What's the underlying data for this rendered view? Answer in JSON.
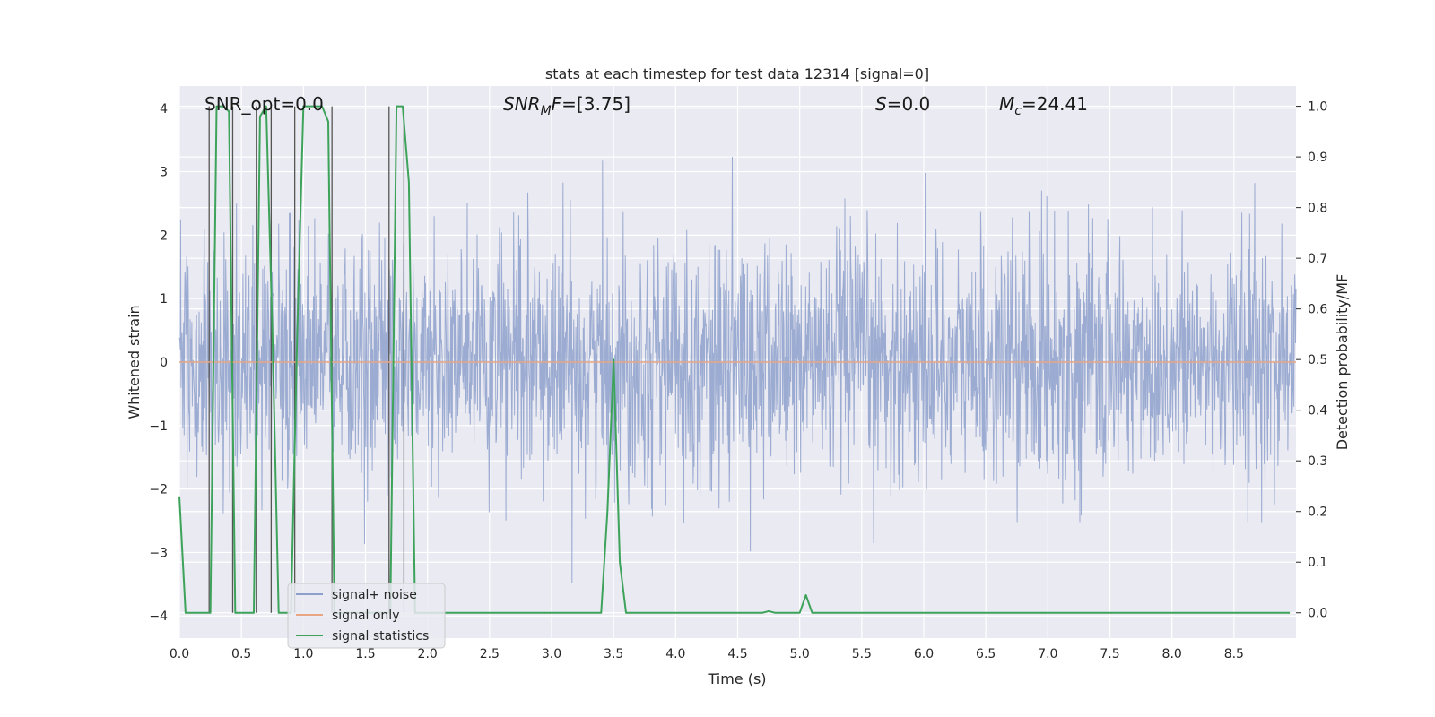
{
  "chart_data": {
    "type": "line",
    "title": "stats at each timestep for test data 12314 [signal=0]",
    "xlabel": "Time (s)",
    "ylabel_left": "Whitened strain",
    "ylabel_right": "Detection probability/MF",
    "xlim": [
      0.0,
      9.0
    ],
    "ylim_left": [
      -4.35,
      4.35
    ],
    "ylim_right": [
      -0.05,
      1.04
    ],
    "x_ticks": [
      "0.0",
      "0.5",
      "1.0",
      "1.5",
      "2.0",
      "2.5",
      "3.0",
      "3.5",
      "4.0",
      "4.5",
      "5.0",
      "5.5",
      "6.0",
      "6.5",
      "7.0",
      "7.5",
      "8.0",
      "8.5"
    ],
    "y_left_ticks": [
      "4",
      "3",
      "2",
      "1",
      "0",
      "−1",
      "−2",
      "−3",
      "−4"
    ],
    "y_right_ticks": [
      "1.0",
      "0.9",
      "0.8",
      "0.7",
      "0.6",
      "0.5",
      "0.4",
      "0.3",
      "0.2",
      "0.1",
      "0.0"
    ],
    "grid": true,
    "legend_placement": "lower-left",
    "annotations": {
      "snr_opt": "SNR_opt=0.0",
      "snr_mf_name": "SNR",
      "snr_mf_sub": "M",
      "snr_mf_rest": "F=[3.75]",
      "s_name": "S",
      "s_rest": "=0.0",
      "mc_name": "M",
      "mc_sub": "c",
      "mc_rest": "=24.41"
    },
    "series": [
      {
        "name": "signal+ noise",
        "color": "#8da0cb",
        "kind": "whitened strain noise around 0, amplitude about ±2, peaks near ±4"
      },
      {
        "name": "signal only",
        "color": "#e8a582",
        "values_constant": 0.0
      },
      {
        "name": "signal statistics",
        "color": "#3da35a",
        "axis": "right",
        "x": [
          0.0,
          0.05,
          0.1,
          0.15,
          0.2,
          0.25,
          0.3,
          0.35,
          0.4,
          0.45,
          0.5,
          0.55,
          0.6,
          0.65,
          0.7,
          0.75,
          0.8,
          0.85,
          0.9,
          0.95,
          1.0,
          1.05,
          1.1,
          1.15,
          1.2,
          1.25,
          1.3,
          1.35,
          1.4,
          1.45,
          1.5,
          1.55,
          1.6,
          1.65,
          1.7,
          1.75,
          1.8,
          1.85,
          1.9,
          1.95,
          2.0,
          2.4,
          3.2,
          3.4,
          3.45,
          3.5,
          3.55,
          3.6,
          3.65,
          4.0,
          4.7,
          4.75,
          4.8,
          4.85,
          5.0,
          5.05,
          5.1,
          5.15,
          8.95
        ],
        "values": [
          0.23,
          0.0,
          0.0,
          0.0,
          0.0,
          0.0,
          1.0,
          1.0,
          0.99,
          0.0,
          0.0,
          0.0,
          0.0,
          0.98,
          1.0,
          0.55,
          0.0,
          0.0,
          0.0,
          0.55,
          1.0,
          1.0,
          1.0,
          1.0,
          0.97,
          0.0,
          0.0,
          0.0,
          0.0,
          0.0,
          0.0,
          0.0,
          0.0,
          0.0,
          0.0,
          1.0,
          1.0,
          0.85,
          0.0,
          0.0,
          0.0,
          0.0,
          0.0,
          0.0,
          0.2,
          0.5,
          0.1,
          0.0,
          0.0,
          0.0,
          0.0,
          0.003,
          0.0,
          0.0,
          0.0,
          0.035,
          0.0,
          0.0,
          0.0
        ]
      }
    ],
    "vertical_markers_x": [
      0.24,
      0.43,
      0.62,
      0.74,
      0.93,
      1.23,
      1.69,
      1.81
    ]
  }
}
